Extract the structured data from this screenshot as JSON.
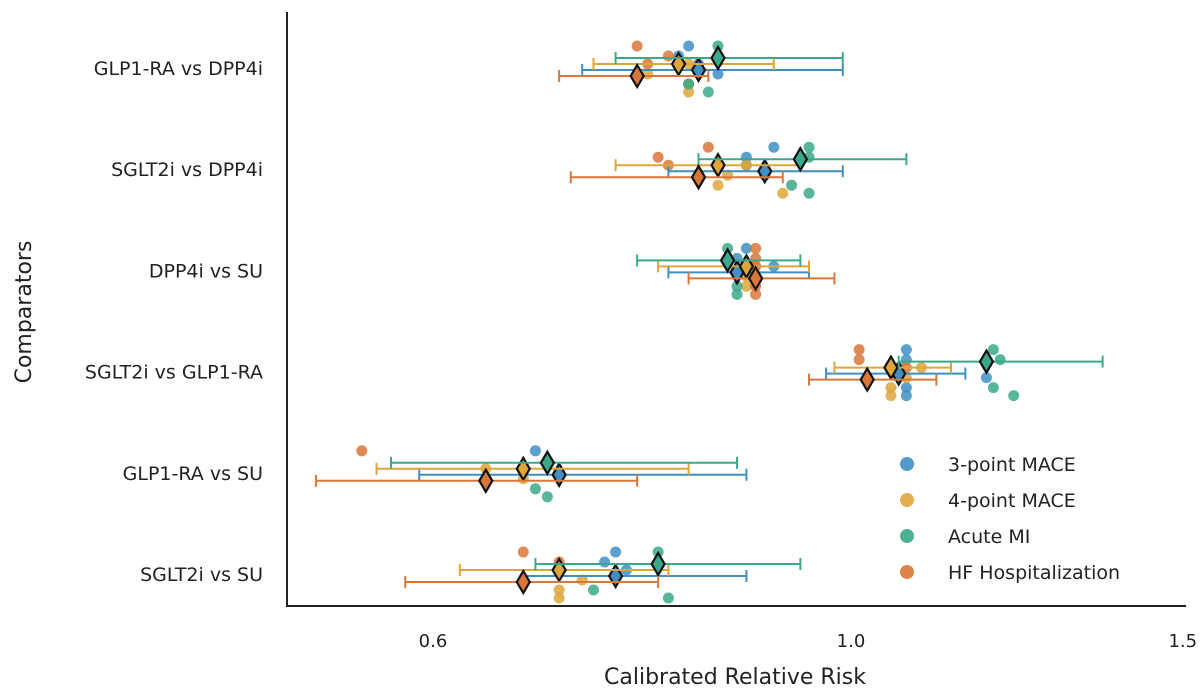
{
  "chart_data": {
    "type": "scatter",
    "xlabel": "Calibrated Relative Risk",
    "ylabel": "Comparators",
    "x_scale": "log",
    "xlim": [
      0.45,
      1.5
    ],
    "x_ticks": [
      {
        "value": 0.6,
        "label": "0.6"
      },
      {
        "value": 1.0,
        "label": "1.0"
      },
      {
        "value": 1.5,
        "label": "1.5"
      }
    ],
    "grid": false,
    "legend_position": "lower-right",
    "categories": [
      "GLP1-RA vs DPP4i",
      "SGLT2i vs DPP4i",
      "DPP4i vs SU",
      "SGLT2i vs GLP1-RA",
      "GLP1-RA vs SU",
      "SGLT2i vs SU"
    ],
    "series": [
      {
        "name": "3-point MACE",
        "color": "#3f8fc4",
        "summary": [
          {
            "category": "GLP1-RA vs DPP4i",
            "estimate": 0.83,
            "ci": [
              0.72,
              0.99
            ]
          },
          {
            "category": "SGLT2i vs DPP4i",
            "estimate": 0.9,
            "ci": [
              0.8,
              0.99
            ]
          },
          {
            "category": "DPP4i vs SU",
            "estimate": 0.87,
            "ci": [
              0.8,
              0.95
            ]
          },
          {
            "category": "SGLT2i vs GLP1-RA",
            "estimate": 1.06,
            "ci": [
              0.97,
              1.15
            ]
          },
          {
            "category": "GLP1-RA vs SU",
            "estimate": 0.7,
            "ci": [
              0.59,
              0.88
            ]
          },
          {
            "category": "SGLT2i vs SU",
            "estimate": 0.75,
            "ci": [
              0.67,
              0.88
            ]
          }
        ],
        "points": [
          {
            "category": "GLP1-RA vs DPP4i",
            "values": [
              0.82,
              0.81,
              0.83,
              0.85,
              0.82
            ]
          },
          {
            "category": "SGLT2i vs DPP4i",
            "values": [
              0.91,
              0.88,
              0.88,
              0.9
            ]
          },
          {
            "category": "DPP4i vs SU",
            "values": [
              0.88,
              0.87,
              0.91
            ]
          },
          {
            "category": "SGLT2i vs GLP1-RA",
            "values": [
              1.07,
              1.07,
              1.06,
              1.18,
              1.07,
              1.07
            ]
          },
          {
            "category": "GLP1-RA vs SU",
            "values": [
              0.68
            ]
          },
          {
            "category": "SGLT2i vs SU",
            "values": [
              0.75,
              0.74,
              0.76
            ]
          }
        ]
      },
      {
        "name": "4-point MACE",
        "color": "#dea63a",
        "summary": [
          {
            "category": "GLP1-RA vs DPP4i",
            "estimate": 0.81,
            "ci": [
              0.73,
              0.91
            ]
          },
          {
            "category": "SGLT2i vs DPP4i",
            "estimate": 0.85,
            "ci": [
              0.75,
              0.94
            ]
          },
          {
            "category": "DPP4i vs SU",
            "estimate": 0.88,
            "ci": [
              0.79,
              0.95
            ]
          },
          {
            "category": "SGLT2i vs GLP1-RA",
            "estimate": 1.05,
            "ci": [
              0.98,
              1.13
            ]
          },
          {
            "category": "GLP1-RA vs SU",
            "estimate": 0.67,
            "ci": [
              0.56,
              0.82
            ]
          },
          {
            "category": "SGLT2i vs SU",
            "estimate": 0.7,
            "ci": [
              0.62,
              0.8
            ]
          }
        ],
        "points": [
          {
            "category": "GLP1-RA vs DPP4i",
            "values": [
              0.82,
              0.78,
              0.82,
              0.82
            ]
          },
          {
            "category": "SGLT2i vs DPP4i",
            "values": [
              0.88,
              0.86,
              0.85,
              0.92
            ]
          },
          {
            "category": "DPP4i vs SU",
            "values": [
              0.89,
              0.88,
              0.88
            ]
          },
          {
            "category": "SGLT2i vs GLP1-RA",
            "values": [
              1.09,
              1.07,
              1.05,
              1.05
            ]
          },
          {
            "category": "GLP1-RA vs SU",
            "values": [
              0.64,
              0.67
            ]
          },
          {
            "category": "SGLT2i vs SU",
            "values": [
              0.7,
              0.72,
              0.7,
              0.7
            ]
          }
        ]
      },
      {
        "name": "Acute MI",
        "color": "#3aa98a",
        "summary": [
          {
            "category": "GLP1-RA vs DPP4i",
            "estimate": 0.85,
            "ci": [
              0.75,
              0.99
            ]
          },
          {
            "category": "SGLT2i vs DPP4i",
            "estimate": 0.94,
            "ci": [
              0.83,
              1.07
            ]
          },
          {
            "category": "DPP4i vs SU",
            "estimate": 0.86,
            "ci": [
              0.77,
              0.94
            ]
          },
          {
            "category": "SGLT2i vs GLP1-RA",
            "estimate": 1.18,
            "ci": [
              1.06,
              1.36
            ]
          },
          {
            "category": "GLP1-RA vs SU",
            "estimate": 0.69,
            "ci": [
              0.57,
              0.87
            ]
          },
          {
            "category": "SGLT2i vs SU",
            "estimate": 0.79,
            "ci": [
              0.68,
              0.94
            ]
          }
        ],
        "points": [
          {
            "category": "GLP1-RA vs DPP4i",
            "values": [
              0.82,
              0.84,
              0.85,
              0.85
            ]
          },
          {
            "category": "SGLT2i vs DPP4i",
            "values": [
              0.93,
              0.95,
              0.95,
              0.95
            ]
          },
          {
            "category": "DPP4i vs SU",
            "values": [
              0.87,
              0.87,
              0.86,
              0.86
            ]
          },
          {
            "category": "SGLT2i vs GLP1-RA",
            "values": [
              1.19,
              1.22,
              1.19,
              1.2
            ]
          },
          {
            "category": "GLP1-RA vs SU",
            "values": [
              0.68,
              0.69
            ]
          },
          {
            "category": "SGLT2i vs SU",
            "values": [
              0.73,
              0.8,
              0.79
            ]
          }
        ]
      },
      {
        "name": "HF Hospitalization",
        "color": "#d9773a",
        "summary": [
          {
            "category": "GLP1-RA vs DPP4i",
            "estimate": 0.77,
            "ci": [
              0.7,
              0.84
            ]
          },
          {
            "category": "SGLT2i vs DPP4i",
            "estimate": 0.83,
            "ci": [
              0.71,
              0.92
            ]
          },
          {
            "category": "DPP4i vs SU",
            "estimate": 0.89,
            "ci": [
              0.82,
              0.98
            ]
          },
          {
            "category": "SGLT2i vs GLP1-RA",
            "estimate": 1.02,
            "ci": [
              0.95,
              1.11
            ]
          },
          {
            "category": "GLP1-RA vs SU",
            "estimate": 0.64,
            "ci": [
              0.52,
              0.77
            ]
          },
          {
            "category": "SGLT2i vs SU",
            "estimate": 0.67,
            "ci": [
              0.58,
              0.79
            ]
          }
        ],
        "points": [
          {
            "category": "GLP1-RA vs DPP4i",
            "values": [
              0.77,
              0.8,
              0.78
            ]
          },
          {
            "category": "SGLT2i vs DPP4i",
            "values": [
              0.84,
              0.79,
              0.8
            ]
          },
          {
            "category": "DPP4i vs SU",
            "values": [
              0.89,
              0.89,
              0.89,
              0.89,
              0.89,
              0.89
            ]
          },
          {
            "category": "SGLT2i vs GLP1-RA",
            "values": [
              1.01,
              1.01,
              1.07
            ]
          },
          {
            "category": "GLP1-RA vs SU",
            "values": [
              0.55
            ]
          },
          {
            "category": "SGLT2i vs SU",
            "values": [
              0.67,
              0.7
            ]
          }
        ]
      }
    ]
  }
}
